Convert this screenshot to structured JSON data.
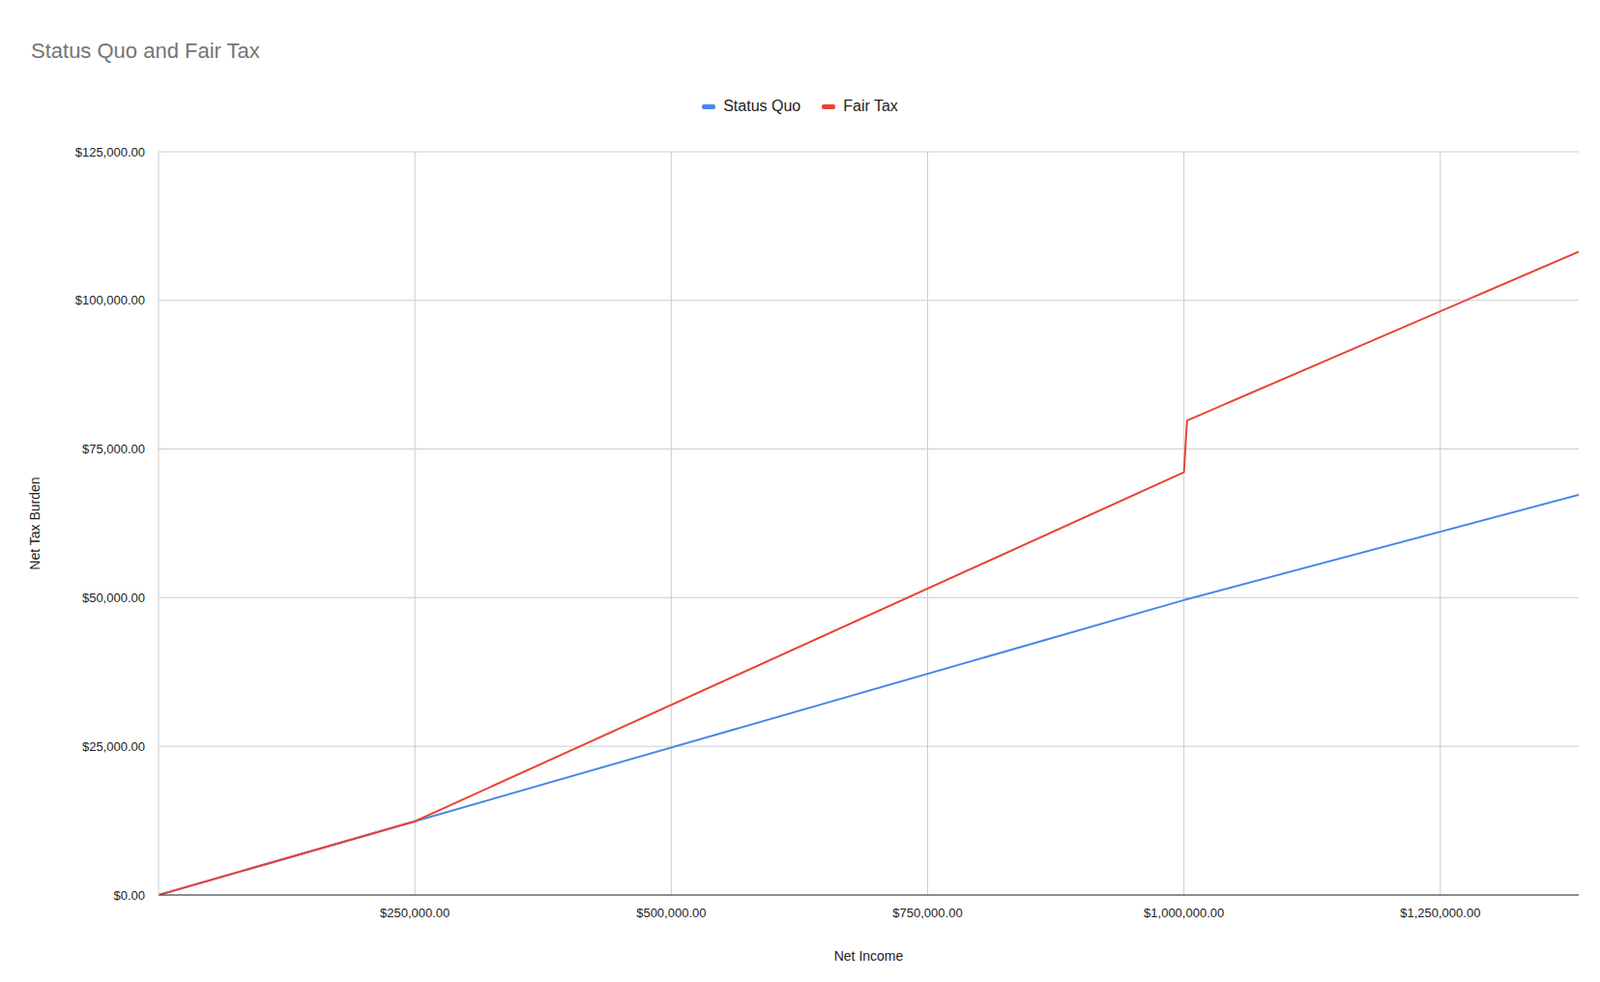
{
  "chart_data": {
    "type": "line",
    "title": "Status Quo and Fair Tax",
    "x_label": "Net Income",
    "y_label": "Net Tax Burden",
    "x": [
      0,
      250000,
      1000000,
      1003000,
      1385000
    ],
    "series": [
      {
        "name": "Status Quo",
        "color": "#4a86e8",
        "values": [
          0,
          12400,
          49600,
          49750,
          67300
        ]
      },
      {
        "name": "Fair Tax",
        "color": "#ea4335",
        "values": [
          0,
          12400,
          71100,
          79800,
          108200
        ]
      }
    ],
    "xlim": [
      0,
      1385000
    ],
    "xticks": [
      {
        "value": 250000,
        "label": "$250,000.00"
      },
      {
        "value": 500000,
        "label": "$500,000.00"
      },
      {
        "value": 750000,
        "label": "$750,000.00"
      },
      {
        "value": 1000000,
        "label": "$1,000,000.00"
      },
      {
        "value": 1250000,
        "label": "$1,250,000.00"
      }
    ],
    "ylim": [
      0,
      125000
    ],
    "yticks": [
      {
        "value": 0,
        "label": "$0.00"
      },
      {
        "value": 25000,
        "label": "$25,000.00"
      },
      {
        "value": 50000,
        "label": "$50,000.00"
      },
      {
        "value": 75000,
        "label": "$75,000.00"
      },
      {
        "value": 100000,
        "label": "$100,000.00"
      },
      {
        "value": 125000,
        "label": "$125,000.00"
      }
    ],
    "grid": true,
    "legend": "top"
  }
}
